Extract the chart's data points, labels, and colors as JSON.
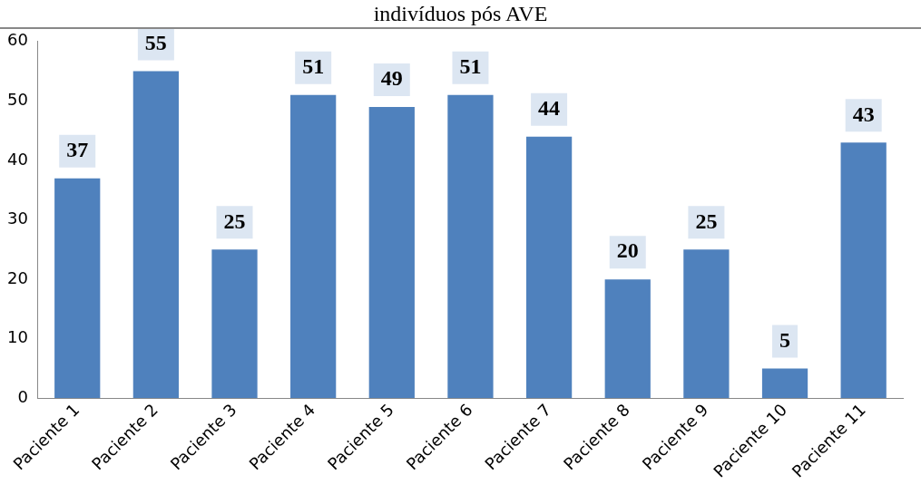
{
  "chart_data": {
    "type": "bar",
    "title": "indivíduos pós AVE",
    "categories": [
      "Paciente 1",
      "Paciente 2",
      "Paciente 3",
      "Paciente 4",
      "Paciente 5",
      "Paciente 6",
      "Paciente 7",
      "Paciente 8",
      "Paciente 9",
      "Paciente 10",
      "Paciente 11"
    ],
    "values": [
      37,
      55,
      25,
      51,
      49,
      51,
      44,
      20,
      25,
      5,
      43
    ],
    "color": "#4f81bd",
    "ylim": [
      0,
      60
    ],
    "yticks": [
      0,
      10,
      20,
      30,
      40,
      50,
      60
    ],
    "grid": false,
    "data_labels": true
  }
}
